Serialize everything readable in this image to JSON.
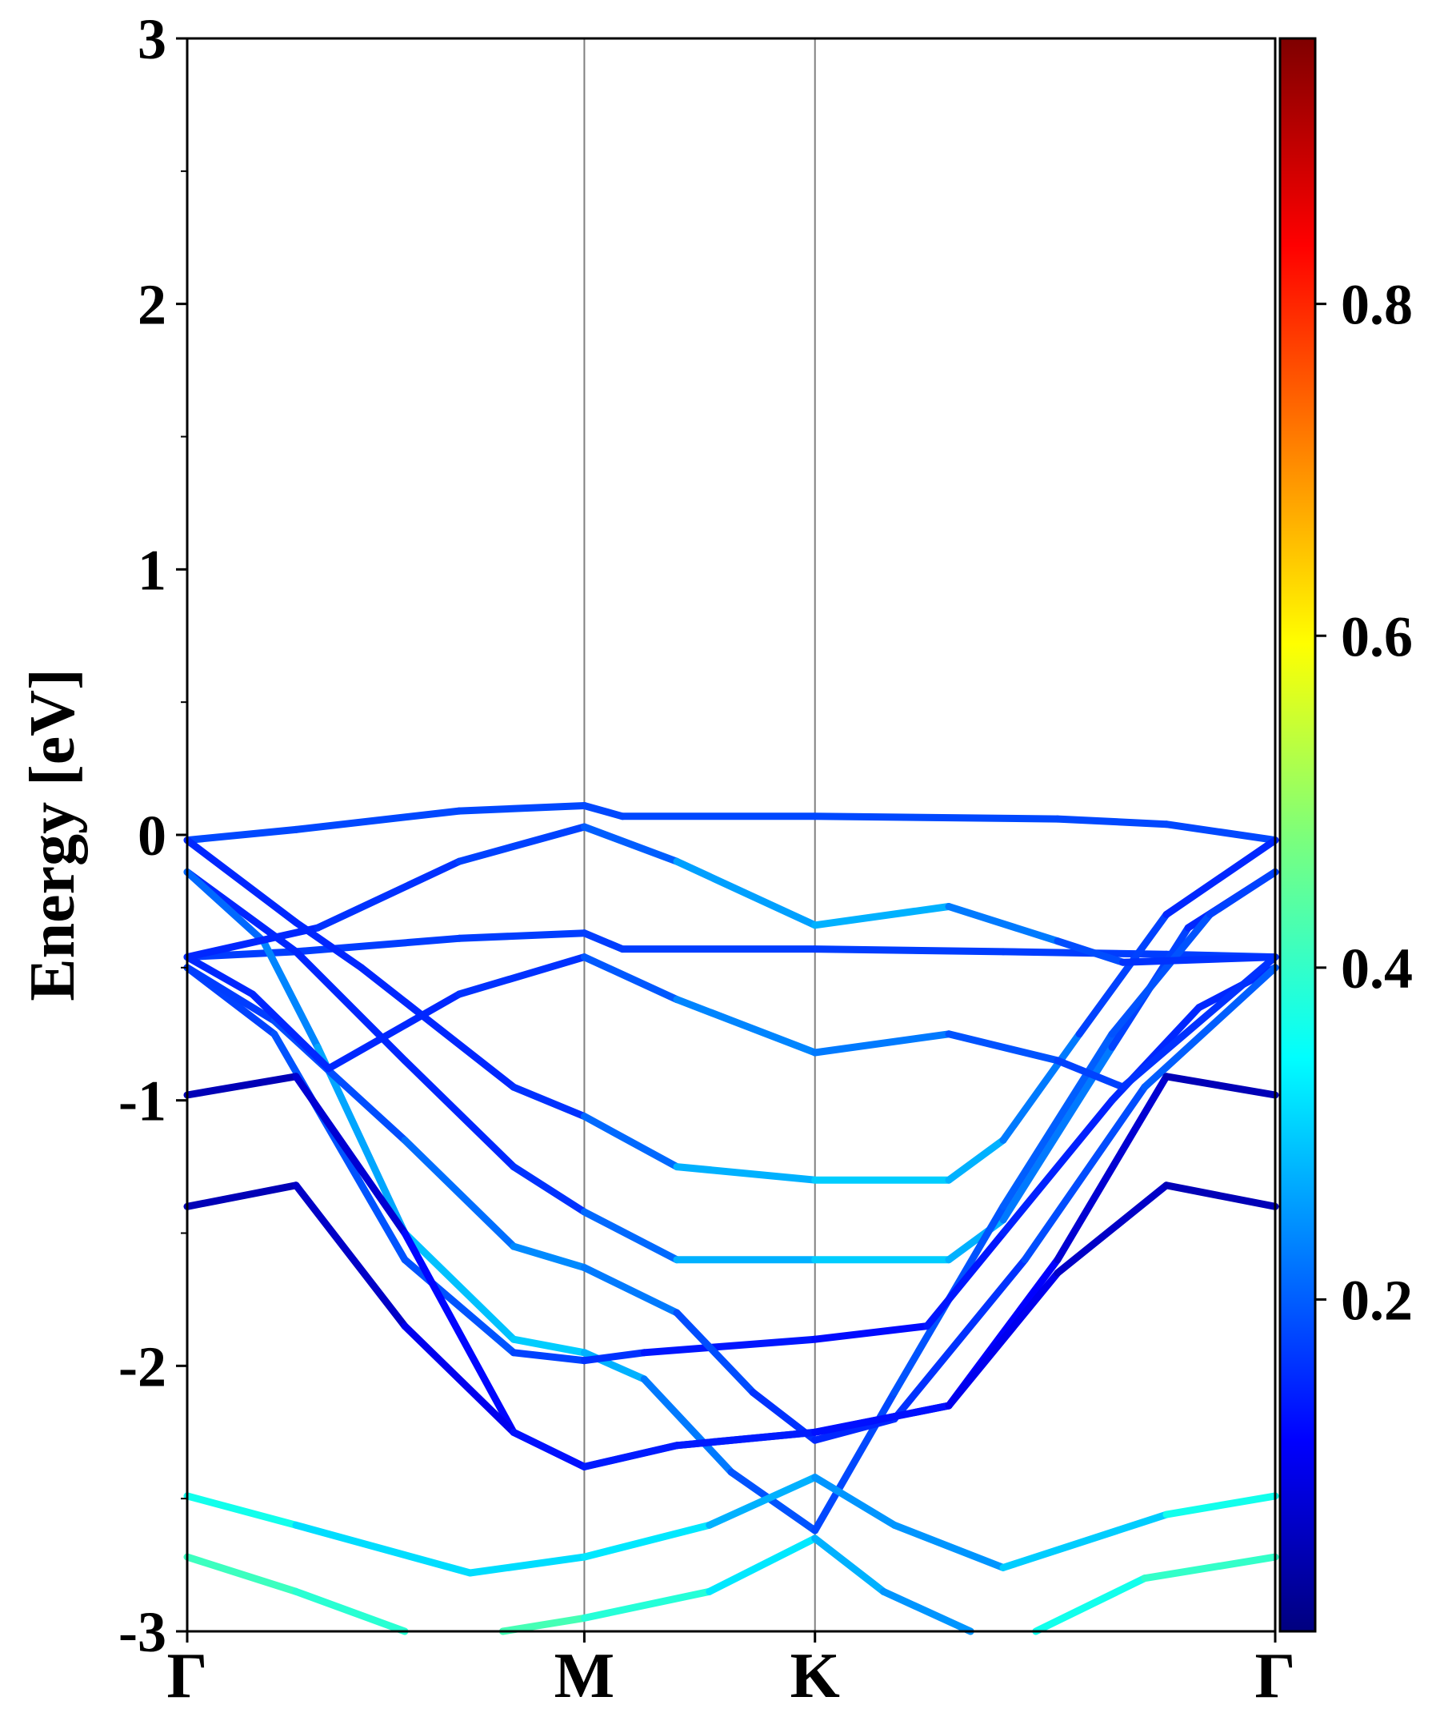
{
  "chart_data": {
    "type": "line",
    "title": "",
    "xlabel": "",
    "ylabel": "Energy [eV]",
    "ylim": [
      -3,
      3
    ],
    "y_ticks": [
      "-3",
      "-2",
      "-1",
      "0",
      "1",
      "2",
      "3"
    ],
    "k_path": [
      {
        "label": "Γ",
        "x": 0.0
      },
      {
        "label": "M",
        "x": 0.365
      },
      {
        "label": "K",
        "x": 0.577
      },
      {
        "label": "Γ",
        "x": 1.0
      }
    ],
    "colorbar": {
      "colormap": "jet",
      "range": [
        0.0,
        0.96
      ],
      "ticks": [
        "0.2",
        "0.4",
        "0.6",
        "0.8"
      ]
    },
    "series": [
      {
        "points": [
          [
            0,
            -0.02
          ],
          [
            0.1,
            0.02
          ],
          [
            0.25,
            0.09
          ],
          [
            0.365,
            0.11
          ],
          [
            0.4,
            0.07
          ],
          [
            0.577,
            0.07
          ],
          [
            0.8,
            0.06
          ],
          [
            0.9,
            0.04
          ],
          [
            1.0,
            -0.02
          ]
        ],
        "weights": [
          0.18,
          0.18,
          0.18,
          0.18,
          0.18,
          0.18,
          0.18,
          0.18,
          0.18
        ]
      },
      {
        "points": [
          [
            0,
            -0.46
          ],
          [
            0.1,
            -0.44
          ],
          [
            0.25,
            -0.39
          ],
          [
            0.365,
            -0.37
          ],
          [
            0.4,
            -0.43
          ],
          [
            0.577,
            -0.43
          ],
          [
            0.75,
            -0.44
          ],
          [
            0.9,
            -0.45
          ],
          [
            1.0,
            -0.46
          ]
        ],
        "weights": [
          0.17,
          0.17,
          0.17,
          0.17,
          0.17,
          0.17,
          0.17,
          0.17,
          0.17
        ]
      },
      {
        "points": [
          [
            0,
            -0.02
          ],
          [
            0.1,
            -0.33
          ],
          [
            0.16,
            -0.5
          ],
          [
            0.3,
            -0.95
          ],
          [
            0.365,
            -1.06
          ],
          [
            0.45,
            -1.25
          ],
          [
            0.577,
            -1.3
          ],
          [
            0.7,
            -1.3
          ],
          [
            0.75,
            -1.15
          ],
          [
            0.82,
            -0.75
          ],
          [
            0.9,
            -0.3
          ],
          [
            1.0,
            -0.02
          ]
        ],
        "weights": [
          0.15,
          0.15,
          0.15,
          0.15,
          0.17,
          0.25,
          0.3,
          0.3,
          0.25,
          0.2,
          0.15,
          0.15
        ]
      },
      {
        "points": [
          [
            0,
            -0.14
          ],
          [
            0.1,
            -0.44
          ],
          [
            0.2,
            -0.85
          ],
          [
            0.3,
            -1.25
          ],
          [
            0.365,
            -1.42
          ],
          [
            0.45,
            -1.6
          ],
          [
            0.577,
            -1.6
          ],
          [
            0.7,
            -1.6
          ],
          [
            0.75,
            -1.45
          ],
          [
            0.85,
            -0.8
          ],
          [
            0.92,
            -0.35
          ],
          [
            1.0,
            -0.14
          ]
        ],
        "weights": [
          0.15,
          0.15,
          0.15,
          0.15,
          0.17,
          0.25,
          0.3,
          0.3,
          0.25,
          0.2,
          0.15,
          0.15
        ]
      },
      {
        "points": [
          [
            0,
            -0.14
          ],
          [
            0.07,
            -0.4
          ],
          [
            0.12,
            -0.8
          ],
          [
            0.2,
            -1.5
          ],
          [
            0.3,
            -1.9
          ],
          [
            0.365,
            -1.95
          ],
          [
            0.42,
            -2.05
          ],
          [
            0.5,
            -2.4
          ],
          [
            0.577,
            -2.62
          ],
          [
            0.65,
            -2.1
          ],
          [
            0.75,
            -1.4
          ],
          [
            0.85,
            -0.75
          ],
          [
            0.94,
            -0.3
          ],
          [
            1.0,
            -0.14
          ]
        ],
        "weights": [
          0.2,
          0.22,
          0.25,
          0.28,
          0.3,
          0.3,
          0.25,
          0.2,
          0.18,
          0.18,
          0.2,
          0.2,
          0.18,
          0.17
        ]
      },
      {
        "points": [
          [
            0,
            -0.5
          ],
          [
            0.08,
            -0.75
          ],
          [
            0.2,
            -1.6
          ],
          [
            0.3,
            -1.95
          ],
          [
            0.365,
            -1.98
          ],
          [
            0.42,
            -1.95
          ],
          [
            0.577,
            -1.9
          ],
          [
            0.68,
            -1.85
          ],
          [
            0.75,
            -1.5
          ],
          [
            0.85,
            -1.0
          ],
          [
            0.93,
            -0.65
          ],
          [
            1.0,
            -0.5
          ]
        ],
        "weights": [
          0.17,
          0.18,
          0.2,
          0.18,
          0.17,
          0.15,
          0.12,
          0.13,
          0.14,
          0.15,
          0.15,
          0.15
        ]
      },
      {
        "points": [
          [
            0,
            -0.5
          ],
          [
            0.08,
            -0.7
          ],
          [
            0.2,
            -1.15
          ],
          [
            0.3,
            -1.55
          ],
          [
            0.365,
            -1.63
          ],
          [
            0.45,
            -1.8
          ],
          [
            0.52,
            -2.1
          ],
          [
            0.577,
            -2.28
          ],
          [
            0.65,
            -2.2
          ],
          [
            0.77,
            -1.6
          ],
          [
            0.88,
            -0.95
          ],
          [
            1.0,
            -0.5
          ]
        ],
        "weights": [
          0.17,
          0.17,
          0.2,
          0.23,
          0.25,
          0.2,
          0.17,
          0.15,
          0.15,
          0.17,
          0.2,
          0.2
        ]
      },
      {
        "points": [
          [
            0,
            -0.46
          ],
          [
            0.06,
            -0.6
          ],
          [
            0.13,
            -0.88
          ],
          [
            0.25,
            -0.6
          ],
          [
            0.365,
            -0.46
          ],
          [
            0.45,
            -0.62
          ],
          [
            0.577,
            -0.82
          ],
          [
            0.7,
            -0.75
          ],
          [
            0.8,
            -0.85
          ],
          [
            0.86,
            -0.95
          ],
          [
            1.0,
            -0.46
          ]
        ],
        "weights": [
          0.15,
          0.15,
          0.15,
          0.15,
          0.17,
          0.22,
          0.25,
          0.2,
          0.18,
          0.17,
          0.15
        ]
      },
      {
        "points": [
          [
            0,
            -0.46
          ],
          [
            0.12,
            -0.35
          ],
          [
            0.25,
            -0.1
          ],
          [
            0.365,
            0.03
          ],
          [
            0.45,
            -0.1
          ],
          [
            0.577,
            -0.34
          ],
          [
            0.7,
            -0.27
          ],
          [
            0.8,
            -0.4
          ],
          [
            0.86,
            -0.48
          ],
          [
            1.0,
            -0.46
          ]
        ],
        "weights": [
          0.15,
          0.15,
          0.17,
          0.18,
          0.22,
          0.3,
          0.25,
          0.2,
          0.17,
          0.15
        ]
      },
      {
        "points": [
          [
            0,
            -0.98
          ],
          [
            0.1,
            -0.91
          ],
          [
            0.2,
            -1.5
          ],
          [
            0.3,
            -2.25
          ],
          [
            0.365,
            -2.38
          ],
          [
            0.45,
            -2.3
          ],
          [
            0.577,
            -2.25
          ],
          [
            0.7,
            -2.15
          ],
          [
            0.8,
            -1.6
          ],
          [
            0.9,
            -0.91
          ],
          [
            1.0,
            -0.98
          ]
        ],
        "weights": [
          0.05,
          0.05,
          0.1,
          0.14,
          0.15,
          0.15,
          0.15,
          0.13,
          0.1,
          0.05,
          0.05
        ]
      },
      {
        "points": [
          [
            0,
            -1.4
          ],
          [
            0.1,
            -1.32
          ],
          [
            0.2,
            -1.85
          ],
          [
            0.3,
            -2.25
          ],
          [
            0.365,
            -2.38
          ],
          [
            0.45,
            -2.3
          ],
          [
            0.577,
            -2.25
          ],
          [
            0.7,
            -2.15
          ],
          [
            0.8,
            -1.65
          ],
          [
            0.9,
            -1.32
          ],
          [
            1.0,
            -1.4
          ]
        ],
        "weights": [
          0.05,
          0.05,
          0.08,
          0.12,
          0.14,
          0.14,
          0.14,
          0.12,
          0.08,
          0.05,
          0.05
        ]
      },
      {
        "points": [
          [
            0,
            -2.49
          ],
          [
            0.1,
            -2.6
          ],
          [
            0.26,
            -2.78
          ],
          [
            0.365,
            -2.72
          ],
          [
            0.48,
            -2.6
          ],
          [
            0.577,
            -2.42
          ],
          [
            0.65,
            -2.6
          ],
          [
            0.75,
            -2.76
          ],
          [
            0.9,
            -2.56
          ],
          [
            1.0,
            -2.49
          ]
        ],
        "weights": [
          0.38,
          0.35,
          0.28,
          0.35,
          0.3,
          0.25,
          0.25,
          0.25,
          0.35,
          0.38
        ]
      },
      {
        "points": [
          [
            0,
            -2.72
          ],
          [
            0.1,
            -2.85
          ],
          [
            0.2,
            -3.0
          ]
        ],
        "weights": [
          0.42,
          0.4,
          0.38
        ]
      },
      {
        "points": [
          [
            0.29,
            -3.0
          ],
          [
            0.365,
            -2.95
          ],
          [
            0.48,
            -2.85
          ],
          [
            0.577,
            -2.65
          ],
          [
            0.64,
            -2.85
          ],
          [
            0.72,
            -3.0
          ]
        ],
        "weights": [
          0.42,
          0.42,
          0.35,
          0.3,
          0.25,
          0.25
        ]
      },
      {
        "points": [
          [
            0.78,
            -3.0
          ],
          [
            0.88,
            -2.8
          ],
          [
            1.0,
            -2.72
          ]
        ],
        "weights": [
          0.35,
          0.38,
          0.42
        ]
      }
    ]
  }
}
